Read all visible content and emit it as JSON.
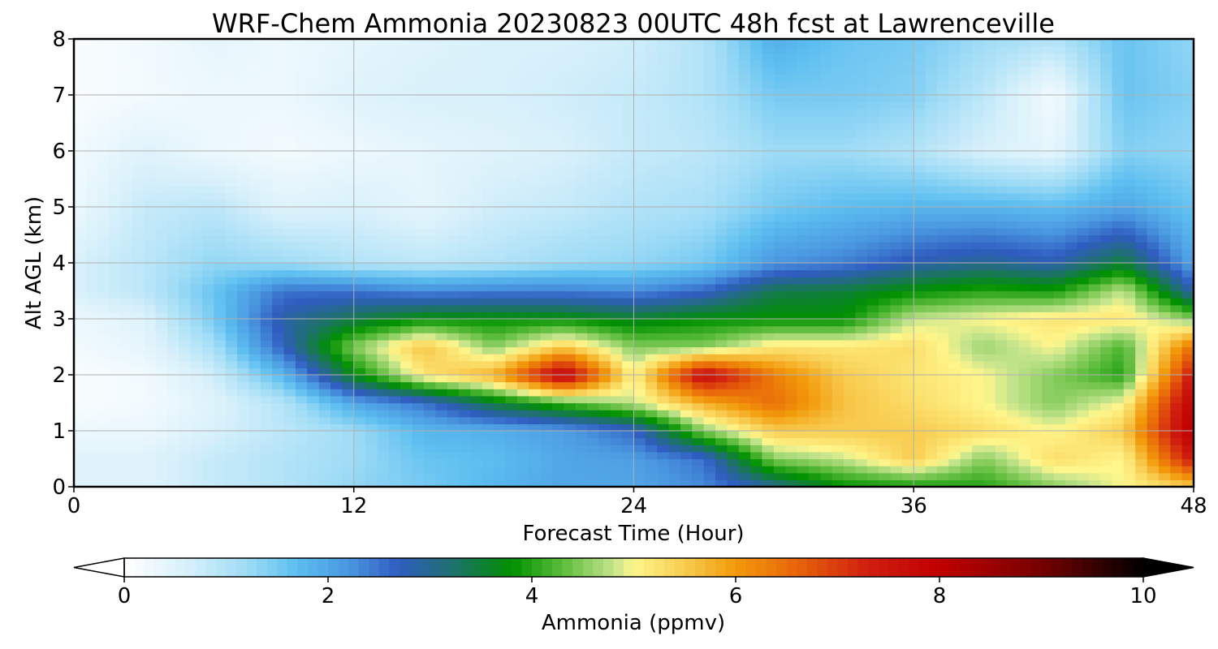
{
  "chart_data": {
    "type": "heatmap",
    "title": "WRF-Chem Ammonia  20230823 00UTC 48h fcst at Lawrenceville",
    "xlabel": "Forecast Time (Hour)",
    "ylabel": "Alt AGL (km)",
    "xlim": [
      0,
      48
    ],
    "ylim": [
      0,
      8
    ],
    "x_ticks": [
      0,
      12,
      24,
      36,
      48
    ],
    "y_ticks": [
      0,
      1,
      2,
      3,
      4,
      5,
      6,
      7,
      8
    ],
    "grid": true,
    "colorbar": {
      "label": "Ammonia  (ppmv)",
      "range": [
        0,
        10
      ],
      "ticks": [
        0,
        2,
        4,
        6,
        8,
        10
      ],
      "extend": "both",
      "colors": [
        {
          "v": 0.0,
          "c": "#ffffff"
        },
        {
          "v": 0.6,
          "c": "#d9f1fb"
        },
        {
          "v": 1.2,
          "c": "#9fdcf6"
        },
        {
          "v": 1.7,
          "c": "#5cbef0"
        },
        {
          "v": 2.2,
          "c": "#4a97e0"
        },
        {
          "v": 2.7,
          "c": "#2f5cc0"
        },
        {
          "v": 3.2,
          "c": "#1f7070"
        },
        {
          "v": 3.8,
          "c": "#009000"
        },
        {
          "v": 4.3,
          "c": "#5cbc3c"
        },
        {
          "v": 4.8,
          "c": "#c4e48c"
        },
        {
          "v": 5.0,
          "c": "#fff68c"
        },
        {
          "v": 5.5,
          "c": "#f8cc50"
        },
        {
          "v": 6.0,
          "c": "#f29a0a"
        },
        {
          "v": 6.6,
          "c": "#e8640a"
        },
        {
          "v": 7.3,
          "c": "#d01e10"
        },
        {
          "v": 8.0,
          "c": "#c00000"
        },
        {
          "v": 9.0,
          "c": "#760000"
        },
        {
          "v": 10.0,
          "c": "#000000"
        }
      ]
    },
    "x": [
      0,
      3,
      6,
      9,
      12,
      15,
      18,
      21,
      24,
      27,
      30,
      33,
      36,
      39,
      42,
      45,
      48
    ],
    "y": [
      0,
      0.5,
      1,
      1.5,
      2,
      2.5,
      3,
      3.5,
      4,
      5,
      6,
      7,
      8
    ],
    "z": [
      [
        0.5,
        0.5,
        0.8,
        1.0,
        1.3,
        1.5,
        1.8,
        2.0,
        2.0,
        2.3,
        3.0,
        3.8,
        3.9,
        4.0,
        4.5,
        5.0,
        5.5
      ],
      [
        0.5,
        0.5,
        0.8,
        1.0,
        1.2,
        1.6,
        1.7,
        2.0,
        2.1,
        2.5,
        4.5,
        4.8,
        5.5,
        4.5,
        5.3,
        5.0,
        7.5
      ],
      [
        0.3,
        0.3,
        0.6,
        0.9,
        1.2,
        1.8,
        1.9,
        2.1,
        2.6,
        4.5,
        5.5,
        5.5,
        5.5,
        5.3,
        5.0,
        5.5,
        8.2
      ],
      [
        0.1,
        0.2,
        0.5,
        1.0,
        2.0,
        2.5,
        3.5,
        4.2,
        4.8,
        5.8,
        6.5,
        5.6,
        5.3,
        5.0,
        4.5,
        5.0,
        8.0
      ],
      [
        0.1,
        0.2,
        0.7,
        1.8,
        3.7,
        5.2,
        5.8,
        8.0,
        5.0,
        7.8,
        6.3,
        5.5,
        5.2,
        5.0,
        4.5,
        4.0,
        7.5
      ],
      [
        0.2,
        0.4,
        1.1,
        2.7,
        4.5,
        5.6,
        4.5,
        5.5,
        4.5,
        4.5,
        5.2,
        5.2,
        5.3,
        4.6,
        5.0,
        4.2,
        6.5
      ],
      [
        0.3,
        0.5,
        1.5,
        2.9,
        3.4,
        3.8,
        3.8,
        3.8,
        3.6,
        3.8,
        3.8,
        3.8,
        4.8,
        5.0,
        5.2,
        5.2,
        4.5
      ],
      [
        0.6,
        0.9,
        1.6,
        2.5,
        2.5,
        2.3,
        2.4,
        2.4,
        2.3,
        2.6,
        3.4,
        3.5,
        3.8,
        4.0,
        3.9,
        4.8,
        2.8
      ],
      [
        0.6,
        0.9,
        1.3,
        1.2,
        1.0,
        0.9,
        1.0,
        1.2,
        1.3,
        1.5,
        2.2,
        2.4,
        2.8,
        3.0,
        2.8,
        3.5,
        2.0
      ],
      [
        0.3,
        0.8,
        0.9,
        0.5,
        0.6,
        0.4,
        0.7,
        0.8,
        1.0,
        1.1,
        1.5,
        1.7,
        1.8,
        1.8,
        1.7,
        2.0,
        1.6
      ],
      [
        0.2,
        0.5,
        0.3,
        0.2,
        0.3,
        0.4,
        0.5,
        0.6,
        0.8,
        0.9,
        1.2,
        1.2,
        1.0,
        0.6,
        0.4,
        1.4,
        1.3
      ],
      [
        0.1,
        0.2,
        0.3,
        0.3,
        0.5,
        0.6,
        0.6,
        0.7,
        0.8,
        1.0,
        1.5,
        1.5,
        1.4,
        0.9,
        0.2,
        1.6,
        1.4
      ],
      [
        0.1,
        0.2,
        0.4,
        0.3,
        0.4,
        0.5,
        0.6,
        0.6,
        0.7,
        1.0,
        1.9,
        1.6,
        1.5,
        1.2,
        1.0,
        1.6,
        1.3
      ]
    ]
  }
}
